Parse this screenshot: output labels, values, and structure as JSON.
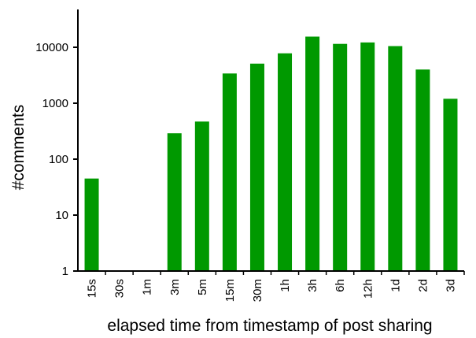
{
  "chart_data": {
    "type": "bar",
    "title": "",
    "xlabel": "elapsed time from timestamp of post sharing",
    "ylabel": "#comments",
    "yscale": "log",
    "ylim": [
      1,
      40000
    ],
    "yticks": [
      1,
      10,
      100,
      1000,
      10000
    ],
    "ytick_labels": [
      "1",
      "10",
      "100",
      "1000",
      "10000"
    ],
    "categories": [
      "15s",
      "30s",
      "1m",
      "3m",
      "5m",
      "15m",
      "30m",
      "1h",
      "3h",
      "6h",
      "12h",
      "1d",
      "2d",
      "3d"
    ],
    "values": [
      45,
      0,
      0,
      290,
      470,
      3400,
      5100,
      7800,
      15500,
      11500,
      12200,
      10500,
      4000,
      1200
    ],
    "bar_color": "#009900",
    "grid": false,
    "legend": "none"
  }
}
